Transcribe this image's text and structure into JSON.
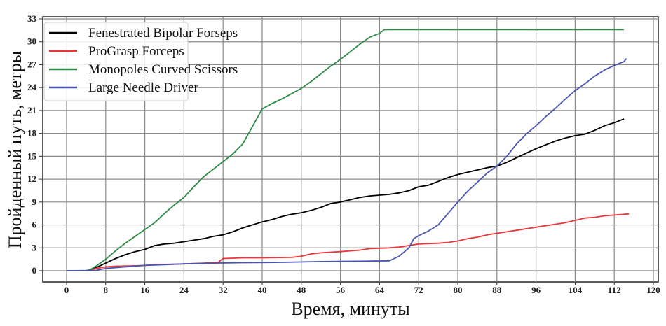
{
  "chart_data": {
    "type": "line",
    "title": "",
    "xlabel": "Время, минуты",
    "ylabel": "Пройденный путь, метры",
    "xlim": [
      -5,
      121
    ],
    "ylim": [
      -1.5,
      33
    ],
    "x_ticks": [
      0,
      8,
      16,
      24,
      32,
      40,
      48,
      56,
      64,
      72,
      80,
      88,
      96,
      104,
      112,
      120
    ],
    "y_ticks": [
      0,
      3,
      6,
      9,
      12,
      15,
      18,
      21,
      24,
      27,
      30,
      33
    ],
    "grid": true,
    "legend_position": "upper left",
    "series": [
      {
        "name": "Fenestrated Bipolar Forseps",
        "color": "#000000",
        "points": [
          [
            0,
            0
          ],
          [
            4,
            0
          ],
          [
            5,
            0.1
          ],
          [
            6,
            0.4
          ],
          [
            8,
            1.0
          ],
          [
            10,
            1.6
          ],
          [
            12,
            2.1
          ],
          [
            14,
            2.5
          ],
          [
            16,
            2.8
          ],
          [
            18,
            3.3
          ],
          [
            20,
            3.5
          ],
          [
            22,
            3.6
          ],
          [
            24,
            3.8
          ],
          [
            26,
            4.0
          ],
          [
            28,
            4.2
          ],
          [
            30,
            4.5
          ],
          [
            32,
            4.7
          ],
          [
            34,
            5.1
          ],
          [
            36,
            5.6
          ],
          [
            38,
            6.0
          ],
          [
            40,
            6.4
          ],
          [
            42,
            6.7
          ],
          [
            44,
            7.1
          ],
          [
            46,
            7.4
          ],
          [
            48,
            7.6
          ],
          [
            50,
            7.9
          ],
          [
            52,
            8.3
          ],
          [
            54,
            8.8
          ],
          [
            56,
            9.0
          ],
          [
            58,
            9.3
          ],
          [
            60,
            9.6
          ],
          [
            62,
            9.8
          ],
          [
            64,
            9.9
          ],
          [
            66,
            10.0
          ],
          [
            68,
            10.2
          ],
          [
            70,
            10.5
          ],
          [
            72,
            11.0
          ],
          [
            74,
            11.2
          ],
          [
            76,
            11.7
          ],
          [
            78,
            12.2
          ],
          [
            80,
            12.6
          ],
          [
            82,
            12.9
          ],
          [
            84,
            13.2
          ],
          [
            86,
            13.5
          ],
          [
            88,
            13.7
          ],
          [
            90,
            14.2
          ],
          [
            92,
            14.8
          ],
          [
            94,
            15.4
          ],
          [
            96,
            16.0
          ],
          [
            98,
            16.5
          ],
          [
            100,
            17.0
          ],
          [
            102,
            17.4
          ],
          [
            104,
            17.7
          ],
          [
            106,
            17.9
          ],
          [
            108,
            18.4
          ],
          [
            110,
            19.0
          ],
          [
            112,
            19.4
          ],
          [
            114,
            19.9
          ]
        ]
      },
      {
        "name": "ProGrasp Forceps",
        "color": "#e8383b",
        "points": [
          [
            0,
            0
          ],
          [
            4,
            0
          ],
          [
            5,
            0.05
          ],
          [
            6,
            0.3
          ],
          [
            8,
            0.5
          ],
          [
            10,
            0.6
          ],
          [
            14,
            0.65
          ],
          [
            16,
            0.7
          ],
          [
            18,
            0.8
          ],
          [
            24,
            0.9
          ],
          [
            28,
            1.0
          ],
          [
            31,
            1.1
          ],
          [
            32,
            1.6
          ],
          [
            36,
            1.7
          ],
          [
            40,
            1.7
          ],
          [
            46,
            1.75
          ],
          [
            48,
            1.9
          ],
          [
            50,
            2.2
          ],
          [
            52,
            2.35
          ],
          [
            56,
            2.5
          ],
          [
            60,
            2.7
          ],
          [
            62,
            2.9
          ],
          [
            66,
            3.0
          ],
          [
            68,
            3.1
          ],
          [
            70,
            3.3
          ],
          [
            72,
            3.5
          ],
          [
            76,
            3.6
          ],
          [
            78,
            3.7
          ],
          [
            80,
            3.9
          ],
          [
            82,
            4.2
          ],
          [
            84,
            4.4
          ],
          [
            86,
            4.7
          ],
          [
            88,
            4.9
          ],
          [
            90,
            5.1
          ],
          [
            92,
            5.3
          ],
          [
            94,
            5.5
          ],
          [
            96,
            5.7
          ],
          [
            98,
            5.9
          ],
          [
            100,
            6.1
          ],
          [
            102,
            6.3
          ],
          [
            104,
            6.6
          ],
          [
            106,
            6.9
          ],
          [
            108,
            7.0
          ],
          [
            110,
            7.2
          ],
          [
            112,
            7.3
          ],
          [
            114,
            7.4
          ],
          [
            115,
            7.45
          ]
        ]
      },
      {
        "name": "Monopoles Curved Scissors",
        "color": "#2e8b46",
        "points": [
          [
            0,
            0
          ],
          [
            4,
            0
          ],
          [
            5,
            0.2
          ],
          [
            6,
            0.6
          ],
          [
            8,
            1.5
          ],
          [
            10,
            2.6
          ],
          [
            12,
            3.6
          ],
          [
            14,
            4.5
          ],
          [
            16,
            5.4
          ],
          [
            18,
            6.3
          ],
          [
            20,
            7.5
          ],
          [
            22,
            8.6
          ],
          [
            24,
            9.6
          ],
          [
            26,
            11.0
          ],
          [
            28,
            12.3
          ],
          [
            30,
            13.3
          ],
          [
            32,
            14.3
          ],
          [
            34,
            15.3
          ],
          [
            36,
            16.6
          ],
          [
            38,
            18.9
          ],
          [
            40,
            21.2
          ],
          [
            42,
            21.9
          ],
          [
            44,
            22.5
          ],
          [
            46,
            23.2
          ],
          [
            48,
            23.9
          ],
          [
            50,
            24.8
          ],
          [
            52,
            25.8
          ],
          [
            54,
            26.8
          ],
          [
            56,
            27.7
          ],
          [
            58,
            28.7
          ],
          [
            60,
            29.7
          ],
          [
            62,
            30.6
          ],
          [
            64,
            31.1
          ],
          [
            65,
            31.6
          ],
          [
            80,
            31.6
          ],
          [
            100,
            31.6
          ],
          [
            114,
            31.6
          ]
        ]
      },
      {
        "name": "Large Needle Driver",
        "color": "#4a55b0",
        "points": [
          [
            0,
            0
          ],
          [
            6,
            0.05
          ],
          [
            8,
            0.3
          ],
          [
            12,
            0.5
          ],
          [
            16,
            0.7
          ],
          [
            20,
            0.8
          ],
          [
            24,
            0.9
          ],
          [
            30,
            1.0
          ],
          [
            36,
            1.05
          ],
          [
            44,
            1.1
          ],
          [
            52,
            1.2
          ],
          [
            60,
            1.25
          ],
          [
            66,
            1.3
          ],
          [
            67,
            1.6
          ],
          [
            68,
            1.9
          ],
          [
            70,
            3.0
          ],
          [
            71,
            4.2
          ],
          [
            72,
            4.6
          ],
          [
            74,
            5.2
          ],
          [
            76,
            6.0
          ],
          [
            78,
            7.5
          ],
          [
            80,
            9.0
          ],
          [
            82,
            10.4
          ],
          [
            84,
            11.6
          ],
          [
            86,
            12.8
          ],
          [
            88,
            13.7
          ],
          [
            90,
            15.0
          ],
          [
            92,
            16.6
          ],
          [
            94,
            17.9
          ],
          [
            96,
            19.0
          ],
          [
            98,
            20.2
          ],
          [
            100,
            21.3
          ],
          [
            102,
            22.5
          ],
          [
            104,
            23.6
          ],
          [
            106,
            24.5
          ],
          [
            108,
            25.5
          ],
          [
            110,
            26.3
          ],
          [
            112,
            26.9
          ],
          [
            114,
            27.4
          ],
          [
            114.5,
            27.8
          ]
        ]
      }
    ]
  }
}
